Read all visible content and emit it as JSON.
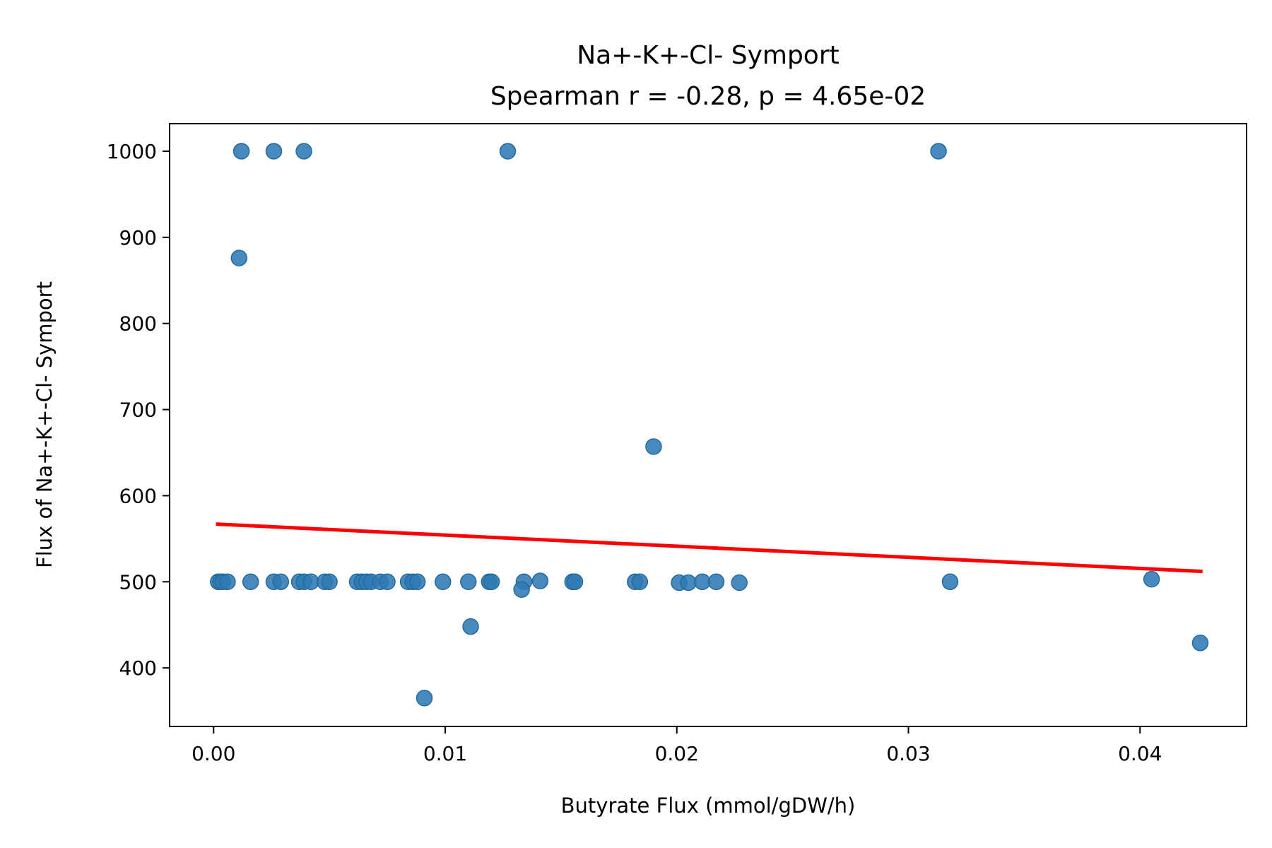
{
  "chart_data": {
    "type": "scatter",
    "title": "Na+-K+-Cl- Symport",
    "subtitle": "Spearman r = -0.28, p = 4.65e-02",
    "xlabel": "Butyrate Flux (mmol/gDW/h)",
    "ylabel": "Flux of Na+-K+-Cl- Symport",
    "xlim": [
      -0.0019,
      0.0446
    ],
    "ylim": [
      332,
      1032
    ],
    "xticks": [
      0.0,
      0.01,
      0.02,
      0.03,
      0.04
    ],
    "xtick_labels": [
      "0.00",
      "0.01",
      "0.02",
      "0.03",
      "0.04"
    ],
    "yticks": [
      400,
      500,
      600,
      700,
      800,
      900,
      1000
    ],
    "ytick_labels": [
      "400",
      "500",
      "600",
      "700",
      "800",
      "900",
      "1000"
    ],
    "grid": false,
    "point_color": "#2f7ab5",
    "trend_color": "#ff0000",
    "points": [
      [
        0.0012,
        1000
      ],
      [
        0.0026,
        1000
      ],
      [
        0.0039,
        1000
      ],
      [
        0.0127,
        1000
      ],
      [
        0.0313,
        1000
      ],
      [
        0.0011,
        876
      ],
      [
        0.019,
        657
      ],
      [
        0.0002,
        500
      ],
      [
        0.0003,
        500
      ],
      [
        0.0004,
        500
      ],
      [
        0.0006,
        500
      ],
      [
        0.0016,
        500
      ],
      [
        0.0026,
        500
      ],
      [
        0.0029,
        500
      ],
      [
        0.0037,
        500
      ],
      [
        0.0039,
        500
      ],
      [
        0.0042,
        500
      ],
      [
        0.0048,
        500
      ],
      [
        0.005,
        500
      ],
      [
        0.0062,
        500
      ],
      [
        0.0064,
        500
      ],
      [
        0.0066,
        500
      ],
      [
        0.0068,
        500
      ],
      [
        0.0072,
        500
      ],
      [
        0.0075,
        500
      ],
      [
        0.0084,
        500
      ],
      [
        0.0086,
        500
      ],
      [
        0.0088,
        500
      ],
      [
        0.0099,
        500
      ],
      [
        0.011,
        500
      ],
      [
        0.0119,
        500
      ],
      [
        0.012,
        500
      ],
      [
        0.0134,
        500
      ],
      [
        0.0141,
        501
      ],
      [
        0.0133,
        491
      ],
      [
        0.0155,
        500
      ],
      [
        0.0156,
        500
      ],
      [
        0.0182,
        500
      ],
      [
        0.0184,
        500
      ],
      [
        0.0201,
        499
      ],
      [
        0.0205,
        499
      ],
      [
        0.0211,
        500
      ],
      [
        0.0217,
        500
      ],
      [
        0.0227,
        499
      ],
      [
        0.0318,
        500
      ],
      [
        0.0405,
        503
      ],
      [
        0.0111,
        448
      ],
      [
        0.0091,
        365
      ],
      [
        0.0426,
        429
      ]
    ],
    "trend_line": {
      "x": [
        0.0001,
        0.0427
      ],
      "y": [
        567,
        512
      ]
    }
  }
}
